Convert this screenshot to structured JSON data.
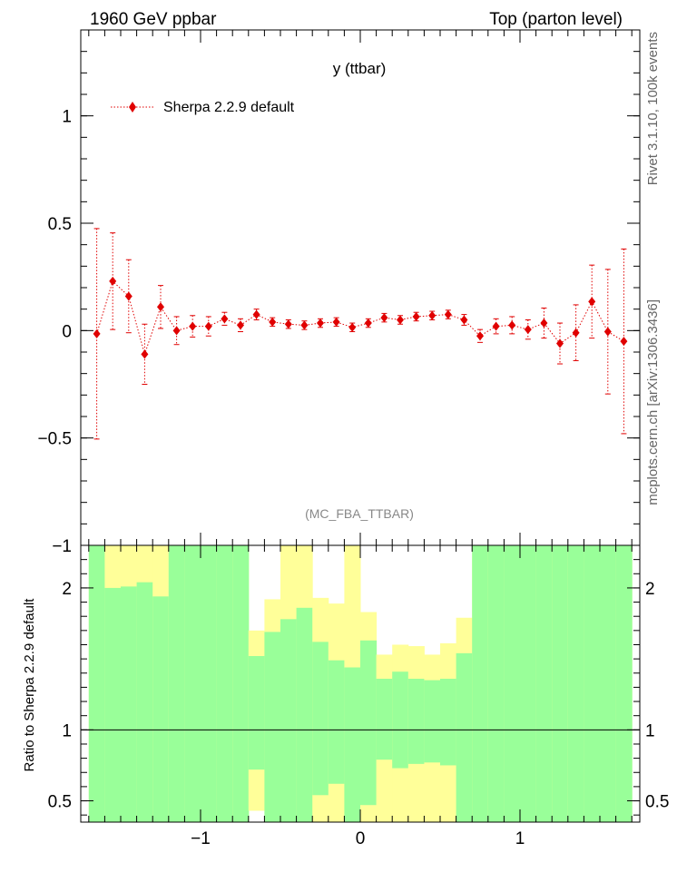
{
  "header": {
    "left": "1960 GeV ppbar",
    "right": "Top (parton level)"
  },
  "side_labels": {
    "rivet": "Rivet 3.1.10,  100k events",
    "mcplots": "mcplots.cern.ch [arXiv:1306.3436]"
  },
  "colors": {
    "series": "#e00000",
    "band_inner": "#99ff99",
    "band_outer": "#ffff99",
    "axis": "#000000",
    "analysis_label": "#888888"
  },
  "chart_data": [
    {
      "type": "scatter",
      "title": "y (ttbar)",
      "analysis_label": "(MC_FBA_TTBAR)",
      "legend": {
        "placement": "top-left",
        "entries": [
          "Sherpa 2.2.9 default"
        ]
      },
      "xlim": [
        -1.75,
        1.75
      ],
      "ylim": [
        -1,
        1.4
      ],
      "y_ticks": [
        -1,
        -0.5,
        0,
        0.5,
        1
      ],
      "y_tick_labels": [
        "−1",
        "−0.5",
        "0",
        "0.5",
        "1"
      ],
      "series": [
        {
          "name": "Sherpa 2.2.9 default",
          "x": [
            -1.65,
            -1.55,
            -1.45,
            -1.35,
            -1.25,
            -1.15,
            -1.05,
            -0.95,
            -0.85,
            -0.75,
            -0.65,
            -0.55,
            -0.45,
            -0.35,
            -0.25,
            -0.15,
            -0.05,
            0.05,
            0.15,
            0.25,
            0.35,
            0.45,
            0.55,
            0.65,
            0.75,
            0.85,
            0.95,
            1.05,
            1.15,
            1.25,
            1.35,
            1.45,
            1.55,
            1.65
          ],
          "y": [
            -0.015,
            0.23,
            0.16,
            -0.11,
            0.11,
            0.0,
            0.02,
            0.02,
            0.055,
            0.025,
            0.075,
            0.04,
            0.03,
            0.025,
            0.035,
            0.04,
            0.015,
            0.035,
            0.06,
            0.05,
            0.065,
            0.07,
            0.075,
            0.05,
            -0.025,
            0.02,
            0.025,
            0.005,
            0.035,
            -0.06,
            -0.01,
            0.135,
            -0.005,
            -0.05
          ],
          "yerr": [
            0.49,
            0.225,
            0.17,
            0.14,
            0.1,
            0.065,
            0.05,
            0.045,
            0.03,
            0.03,
            0.025,
            0.02,
            0.02,
            0.02,
            0.02,
            0.02,
            0.02,
            0.02,
            0.02,
            0.02,
            0.02,
            0.02,
            0.02,
            0.025,
            0.03,
            0.035,
            0.04,
            0.045,
            0.07,
            0.095,
            0.13,
            0.17,
            0.29,
            0.43
          ]
        }
      ]
    },
    {
      "type": "area",
      "ylabel": "Ratio to Sherpa 2.2.9 default",
      "xlim": [
        -1.75,
        1.75
      ],
      "ylim": [
        0.35,
        2.3
      ],
      "x_ticks": [
        -1,
        0,
        1
      ],
      "x_tick_labels": [
        "−1",
        "0",
        "1"
      ],
      "y_ticks": [
        0.5,
        1,
        2
      ],
      "y_tick_labels": [
        "0.5",
        "1",
        "2"
      ],
      "reference_line": 1,
      "bins": {
        "x_low": [
          -1.7,
          -1.6,
          -1.5,
          -1.4,
          -1.3,
          -1.2,
          -1.1,
          -1.0,
          -0.9,
          -0.8,
          -0.7,
          -0.6,
          -0.5,
          -0.4,
          -0.3,
          -0.2,
          -0.1,
          0.0,
          0.1,
          0.2,
          0.3,
          0.4,
          0.5,
          0.6,
          0.7,
          0.8,
          0.9,
          1.0,
          1.1,
          1.2,
          1.3,
          1.4,
          1.5,
          1.6
        ],
        "x_high": [
          -1.6,
          -1.5,
          -1.4,
          -1.3,
          -1.2,
          -1.1,
          -1.0,
          -0.9,
          -0.8,
          -0.7,
          -0.6,
          -0.5,
          -0.4,
          -0.3,
          -0.2,
          -0.1,
          0.0,
          0.1,
          0.2,
          0.3,
          0.4,
          0.5,
          0.6,
          0.7,
          0.8,
          0.9,
          1.0,
          1.1,
          1.2,
          1.3,
          1.4,
          1.5,
          1.6,
          1.7
        ],
        "inner_low": [
          0.35,
          0.35,
          0.35,
          0.35,
          0.35,
          0.35,
          0.35,
          0.35,
          0.35,
          0.35,
          0.72,
          0.35,
          0.35,
          0.35,
          0.54,
          0.62,
          0.35,
          0.47,
          0.79,
          0.73,
          0.76,
          0.77,
          0.75,
          0.35,
          0.35,
          0.35,
          0.35,
          0.35,
          0.35,
          0.35,
          0.35,
          0.35,
          0.35,
          0.35
        ],
        "inner_high": [
          2.3,
          2.0,
          2.01,
          2.04,
          1.94,
          2.3,
          2.3,
          2.3,
          2.3,
          2.3,
          1.52,
          1.69,
          1.78,
          1.86,
          1.62,
          1.49,
          1.44,
          1.63,
          1.36,
          1.41,
          1.36,
          1.35,
          1.36,
          1.54,
          2.3,
          2.3,
          2.3,
          2.3,
          2.3,
          2.3,
          2.3,
          2.3,
          2.3,
          2.3
        ],
        "outer_low": [
          0.35,
          0.35,
          0.35,
          0.35,
          0.35,
          0.35,
          0.35,
          0.35,
          0.35,
          0.35,
          0.43,
          0.35,
          0.35,
          0.35,
          0.35,
          0.35,
          0.35,
          0.35,
          0.35,
          0.35,
          0.35,
          0.35,
          0.35,
          0.35,
          0.35,
          0.35,
          0.35,
          0.35,
          0.35,
          0.35,
          0.35,
          0.35,
          0.35,
          0.35
        ],
        "outer_high": [
          2.3,
          2.3,
          2.3,
          2.3,
          2.3,
          2.3,
          2.3,
          1.88,
          2.3,
          2.3,
          1.7,
          1.92,
          2.3,
          2.3,
          1.93,
          1.89,
          2.3,
          1.83,
          1.53,
          1.6,
          1.59,
          1.53,
          1.61,
          1.79,
          2.3,
          2.3,
          2.3,
          2.3,
          2.3,
          2.3,
          2.3,
          2.3,
          2.3,
          2.3
        ]
      }
    }
  ]
}
